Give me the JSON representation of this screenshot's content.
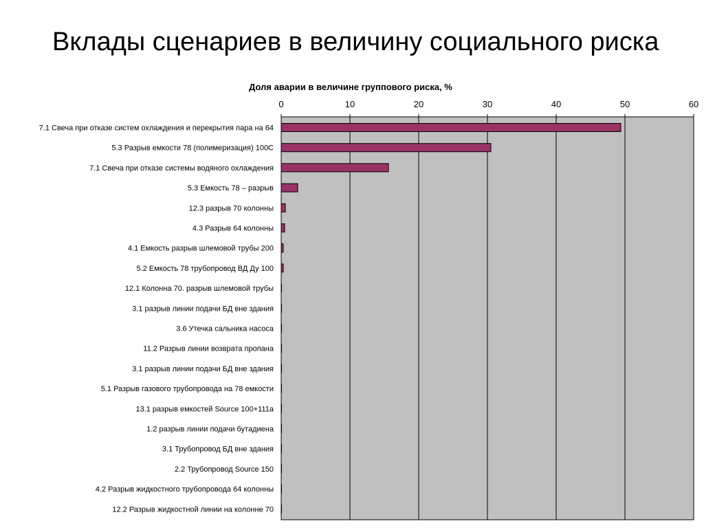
{
  "slide": {
    "title": "Вклады сценариев в величину социального риска"
  },
  "chart_data": {
    "type": "bar",
    "orientation": "horizontal",
    "title": "Доля аварии в величине группового риска, %",
    "xlim": [
      0,
      60
    ],
    "xticks": [
      0,
      10,
      20,
      30,
      40,
      50,
      60
    ],
    "x_axis_position": "top",
    "grid": true,
    "plot_background": "#c0c0c0",
    "bar_color": "#993366",
    "categories": [
      "7.1 Свеча при отказе систем охлаждения и перекрытия пара на 64",
      "5.3 Разрыв емкости 78 (полимеризация) 100С",
      "7.1 Свеча при отказе системы водяного охлаждения",
      "5.3 Емкость 78 – разрыв",
      "12.3 разрыв 70 колонны ",
      "4.3 Разрыв  64 колонны",
      "4.1 Емкость разрыв шлемовой трубы 200",
      "5.2 Емкость 78 трубопровод ВД Ду 100",
      "12.1 Колонна 70. разрыв шлемовой трубы",
      "3.1 разрыв линии подачи БД вне здания",
      "3.6 Утечка сальника насоса",
      "11.2 Разрыв линии возврата пропана",
      "3.1 разрыв линии подачи БД вне здания",
      "5.1 Разрыв газового трубопровода на 78 емкости",
      "13.1 разрыв емкостей Source 100+111а",
      "1.2 разрыв линии подачи бутадиена",
      "3.1 Трубопровод  БД вне здания",
      "2.2 Трубопровод Source 150",
      "4.2 Разрыв жидкостного трубопровода 64 колонны",
      "12.2 Разрыв жидкостной линии на колонне 70"
    ],
    "values": [
      49.4,
      30.5,
      15.6,
      2.4,
      0.6,
      0.5,
      0.3,
      0.3,
      0.05,
      0.05,
      0.04,
      0.03,
      0.03,
      0.02,
      0.02,
      0.01,
      0.01,
      0.01,
      0.01,
      0.01
    ]
  }
}
